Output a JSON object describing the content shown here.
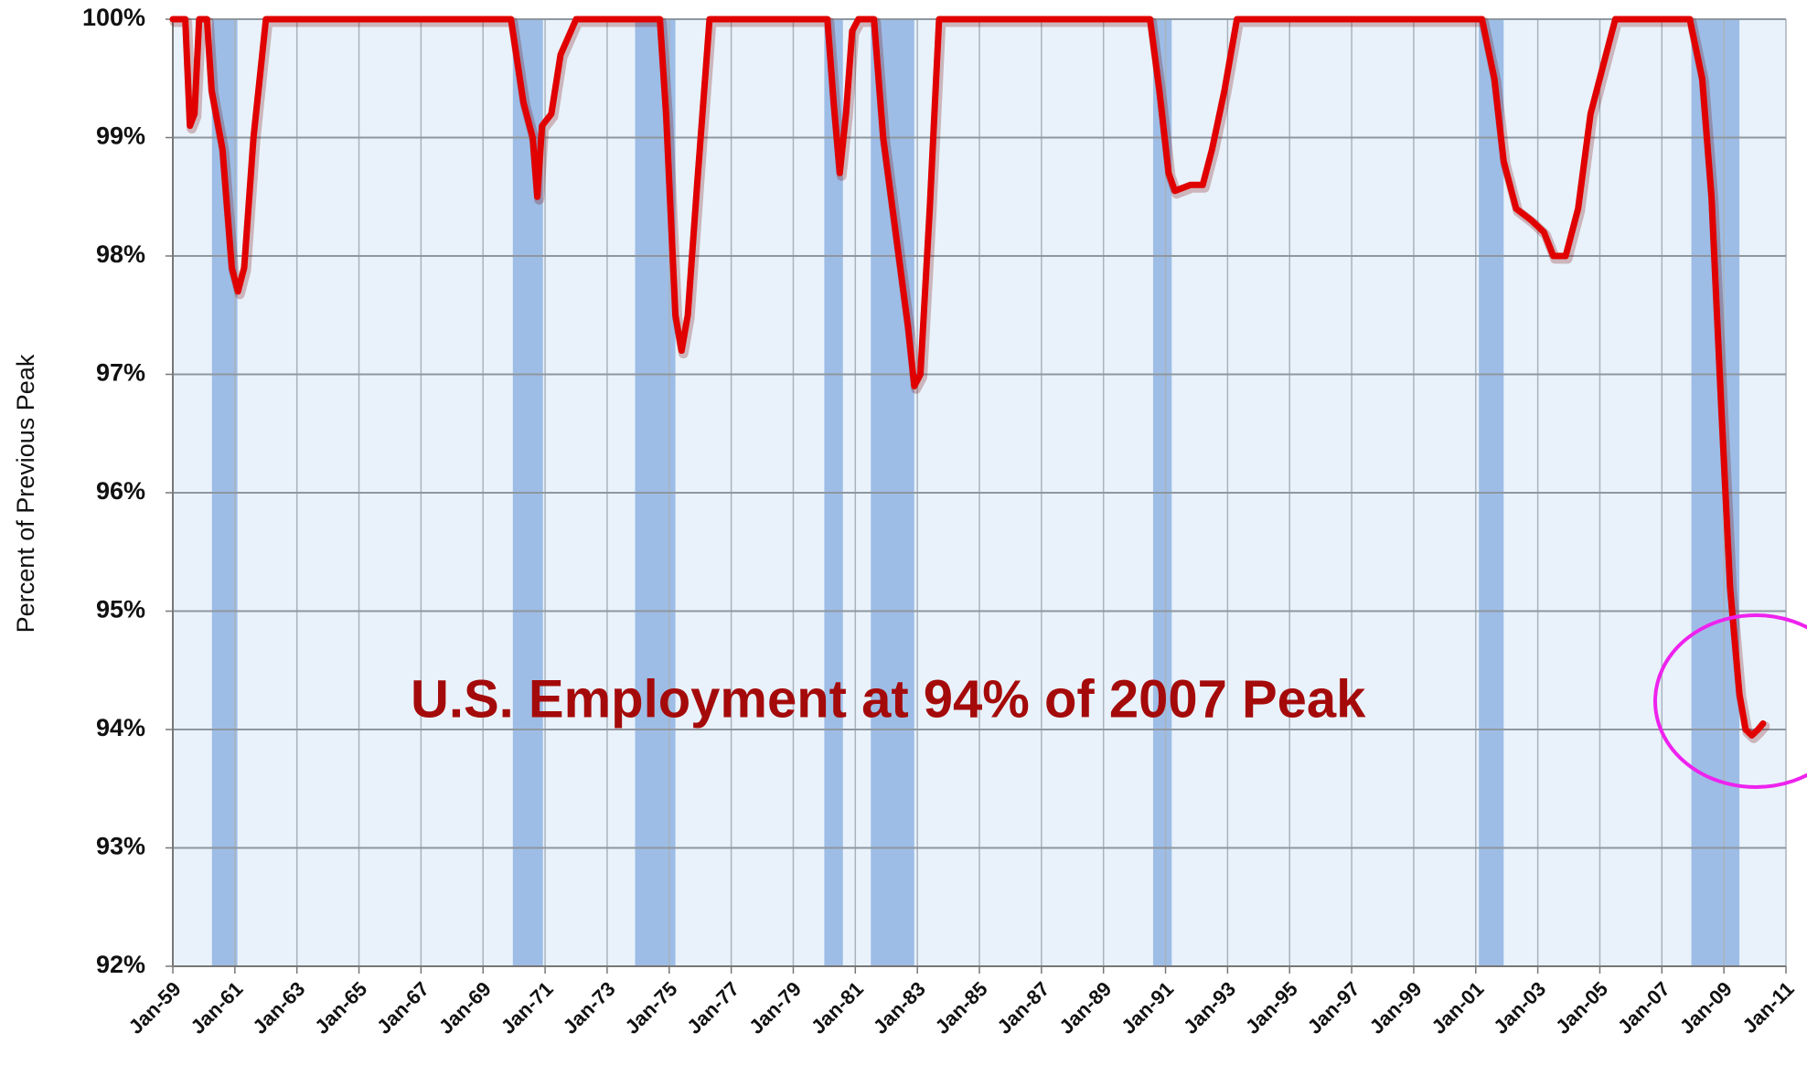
{
  "chart_data": {
    "type": "line",
    "annotation": "U.S. Employment at 94% of 2007 Peak",
    "y_label": "Percent of Previous Peak",
    "xlim": [
      1959,
      2011
    ],
    "xticks": [
      {
        "value": 1959,
        "label": "Jan-59"
      },
      {
        "value": 1961,
        "label": "Jan-61"
      },
      {
        "value": 1963,
        "label": "Jan-63"
      },
      {
        "value": 1965,
        "label": "Jan-65"
      },
      {
        "value": 1967,
        "label": "Jan-67"
      },
      {
        "value": 1969,
        "label": "Jan-69"
      },
      {
        "value": 1971,
        "label": "Jan-71"
      },
      {
        "value": 1973,
        "label": "Jan-73"
      },
      {
        "value": 1975,
        "label": "Jan-75"
      },
      {
        "value": 1977,
        "label": "Jan-77"
      },
      {
        "value": 1979,
        "label": "Jan-79"
      },
      {
        "value": 1981,
        "label": "Jan-81"
      },
      {
        "value": 1983,
        "label": "Jan-83"
      },
      {
        "value": 1985,
        "label": "Jan-85"
      },
      {
        "value": 1987,
        "label": "Jan-87"
      },
      {
        "value": 1989,
        "label": "Jan-89"
      },
      {
        "value": 1991,
        "label": "Jan-91"
      },
      {
        "value": 1993,
        "label": "Jan-93"
      },
      {
        "value": 1995,
        "label": "Jan-95"
      },
      {
        "value": 1997,
        "label": "Jan-97"
      },
      {
        "value": 1999,
        "label": "Jan-99"
      },
      {
        "value": 2001,
        "label": "Jan-01"
      },
      {
        "value": 2003,
        "label": "Jan-03"
      },
      {
        "value": 2005,
        "label": "Jan-05"
      },
      {
        "value": 2007,
        "label": "Jan-07"
      },
      {
        "value": 2009,
        "label": "Jan-09"
      },
      {
        "value": 2011,
        "label": "Jan-11"
      }
    ],
    "ylim": [
      92,
      100
    ],
    "yticks": [
      {
        "value": 92,
        "label": "92%"
      },
      {
        "value": 93,
        "label": "93%"
      },
      {
        "value": 94,
        "label": "94%"
      },
      {
        "value": 95,
        "label": "95%"
      },
      {
        "value": 96,
        "label": "96%"
      },
      {
        "value": 97,
        "label": "97%"
      },
      {
        "value": 98,
        "label": "98%"
      },
      {
        "value": 99,
        "label": "99%"
      },
      {
        "value": 100,
        "label": "100%"
      }
    ],
    "grid": true,
    "background_color": "#e9f2fb",
    "recession_color": "#9dbde6",
    "recessions": [
      [
        1960.26,
        1961.08
      ],
      [
        1969.96,
        1970.93
      ],
      [
        1973.9,
        1975.2
      ],
      [
        1980.0,
        1980.6
      ],
      [
        1981.5,
        1982.9
      ],
      [
        1990.6,
        1991.2
      ],
      [
        2001.1,
        2001.9
      ],
      [
        2007.95,
        2009.5
      ]
    ],
    "x": [
      1959.0,
      1959.4,
      1959.55,
      1959.7,
      1959.85,
      1960.1,
      1960.25,
      1960.6,
      1960.9,
      1961.1,
      1961.3,
      1961.6,
      1962.0,
      1969.9,
      1970.3,
      1970.6,
      1970.75,
      1970.9,
      1971.2,
      1971.5,
      1972.0,
      1974.7,
      1974.9,
      1975.2,
      1975.4,
      1975.6,
      1975.9,
      1976.3,
      1980.1,
      1980.3,
      1980.5,
      1980.7,
      1980.9,
      1981.1,
      1981.6,
      1981.9,
      1982.3,
      1982.7,
      1982.9,
      1983.1,
      1983.4,
      1983.7,
      1990.5,
      1990.8,
      1991.1,
      1991.3,
      1991.8,
      1992.2,
      1992.5,
      1992.9,
      1993.3,
      2001.2,
      2001.6,
      2001.9,
      2002.3,
      2002.8,
      2003.2,
      2003.5,
      2003.9,
      2004.3,
      2004.7,
      2005.2,
      2005.5,
      2007.9,
      2008.3,
      2008.6,
      2008.9,
      2009.2,
      2009.5,
      2009.7,
      2009.9,
      2010.1,
      2010.26
    ],
    "series": [
      {
        "name": "Percent of Previous Peak",
        "color": "#e10000",
        "values": [
          100,
          100,
          99.1,
          99.2,
          100,
          100,
          99.4,
          98.9,
          97.9,
          97.7,
          97.9,
          99.0,
          100,
          100,
          99.3,
          99.0,
          98.5,
          99.1,
          99.2,
          99.7,
          100,
          100,
          99.2,
          97.5,
          97.2,
          97.5,
          98.6,
          100,
          100,
          99.3,
          98.7,
          99.2,
          99.9,
          100,
          100,
          99.0,
          98.2,
          97.4,
          96.9,
          97.0,
          98.4,
          100,
          100,
          99.4,
          98.7,
          98.55,
          98.6,
          98.6,
          98.9,
          99.4,
          100,
          100,
          99.5,
          98.8,
          98.4,
          98.3,
          98.2,
          98.0,
          98.0,
          98.4,
          99.2,
          99.7,
          100,
          100,
          99.5,
          98.5,
          96.8,
          95.2,
          94.3,
          94.0,
          93.95,
          94.0,
          94.05
        ]
      }
    ]
  }
}
